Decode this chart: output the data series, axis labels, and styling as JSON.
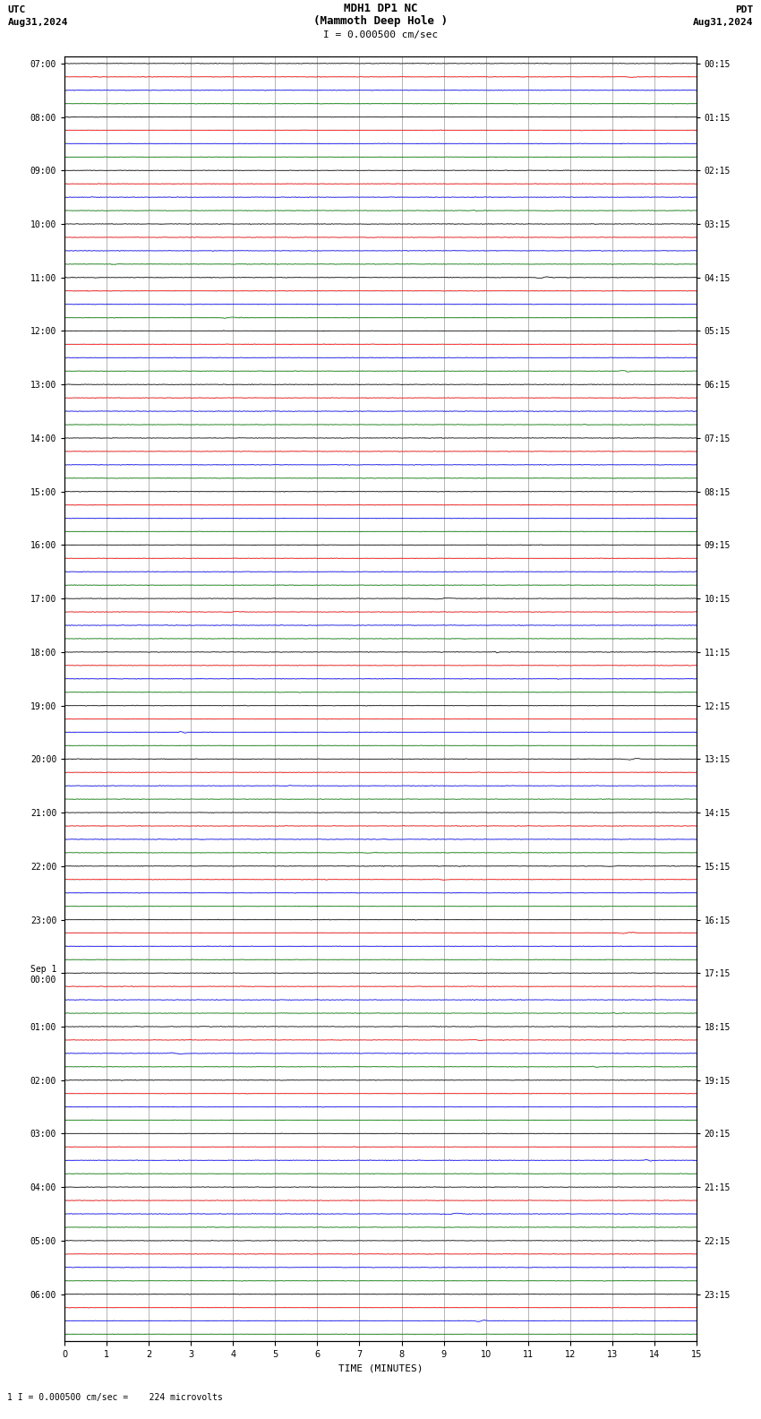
{
  "title_line1": "MDH1 DP1 NC",
  "title_line2": "(Mammoth Deep Hole )",
  "scale_label": "I = 0.000500 cm/sec",
  "footer_label": "1 I = 0.000500 cm/sec =    224 microvolts",
  "left_header_line1": "UTC",
  "left_header_line2": "Aug31,2024",
  "right_header_line1": "PDT",
  "right_header_line2": "Aug31,2024",
  "xlabel": "TIME (MINUTES)",
  "x_ticks": [
    0,
    1,
    2,
    3,
    4,
    5,
    6,
    7,
    8,
    9,
    10,
    11,
    12,
    13,
    14,
    15
  ],
  "x_min": 0,
  "x_max": 15,
  "left_times": [
    "07:00",
    "",
    "",
    "",
    "08:00",
    "",
    "",
    "",
    "09:00",
    "",
    "",
    "",
    "10:00",
    "",
    "",
    "",
    "11:00",
    "",
    "",
    "",
    "12:00",
    "",
    "",
    "",
    "13:00",
    "",
    "",
    "",
    "14:00",
    "",
    "",
    "",
    "15:00",
    "",
    "",
    "",
    "16:00",
    "",
    "",
    "",
    "17:00",
    "",
    "",
    "",
    "18:00",
    "",
    "",
    "",
    "19:00",
    "",
    "",
    "",
    "20:00",
    "",
    "",
    "",
    "21:00",
    "",
    "",
    "",
    "22:00",
    "",
    "",
    "",
    "23:00",
    "",
    "",
    "",
    "Sep 1\n00:00",
    "",
    "",
    "",
    "01:00",
    "",
    "",
    "",
    "02:00",
    "",
    "",
    "",
    "03:00",
    "",
    "",
    "",
    "04:00",
    "",
    "",
    "",
    "05:00",
    "",
    "",
    "",
    "06:00",
    "",
    "",
    ""
  ],
  "right_times": [
    "00:15",
    "",
    "",
    "",
    "01:15",
    "",
    "",
    "",
    "02:15",
    "",
    "",
    "",
    "03:15",
    "",
    "",
    "",
    "04:15",
    "",
    "",
    "",
    "05:15",
    "",
    "",
    "",
    "06:15",
    "",
    "",
    "",
    "07:15",
    "",
    "",
    "",
    "08:15",
    "",
    "",
    "",
    "09:15",
    "",
    "",
    "",
    "10:15",
    "",
    "",
    "",
    "11:15",
    "",
    "",
    "",
    "12:15",
    "",
    "",
    "",
    "13:15",
    "",
    "",
    "",
    "14:15",
    "",
    "",
    "",
    "15:15",
    "",
    "",
    "",
    "16:15",
    "",
    "",
    "",
    "17:15",
    "",
    "",
    "",
    "18:15",
    "",
    "",
    "",
    "19:15",
    "",
    "",
    "",
    "20:15",
    "",
    "",
    "",
    "21:15",
    "",
    "",
    "",
    "22:15",
    "",
    "",
    "",
    "23:15",
    "",
    "",
    ""
  ],
  "trace_colors": [
    "black",
    "red",
    "blue",
    "green"
  ],
  "num_rows": 96,
  "background_color": "white",
  "grid_color": "#999999",
  "noise_amplitude": 0.018,
  "random_seed": 42
}
